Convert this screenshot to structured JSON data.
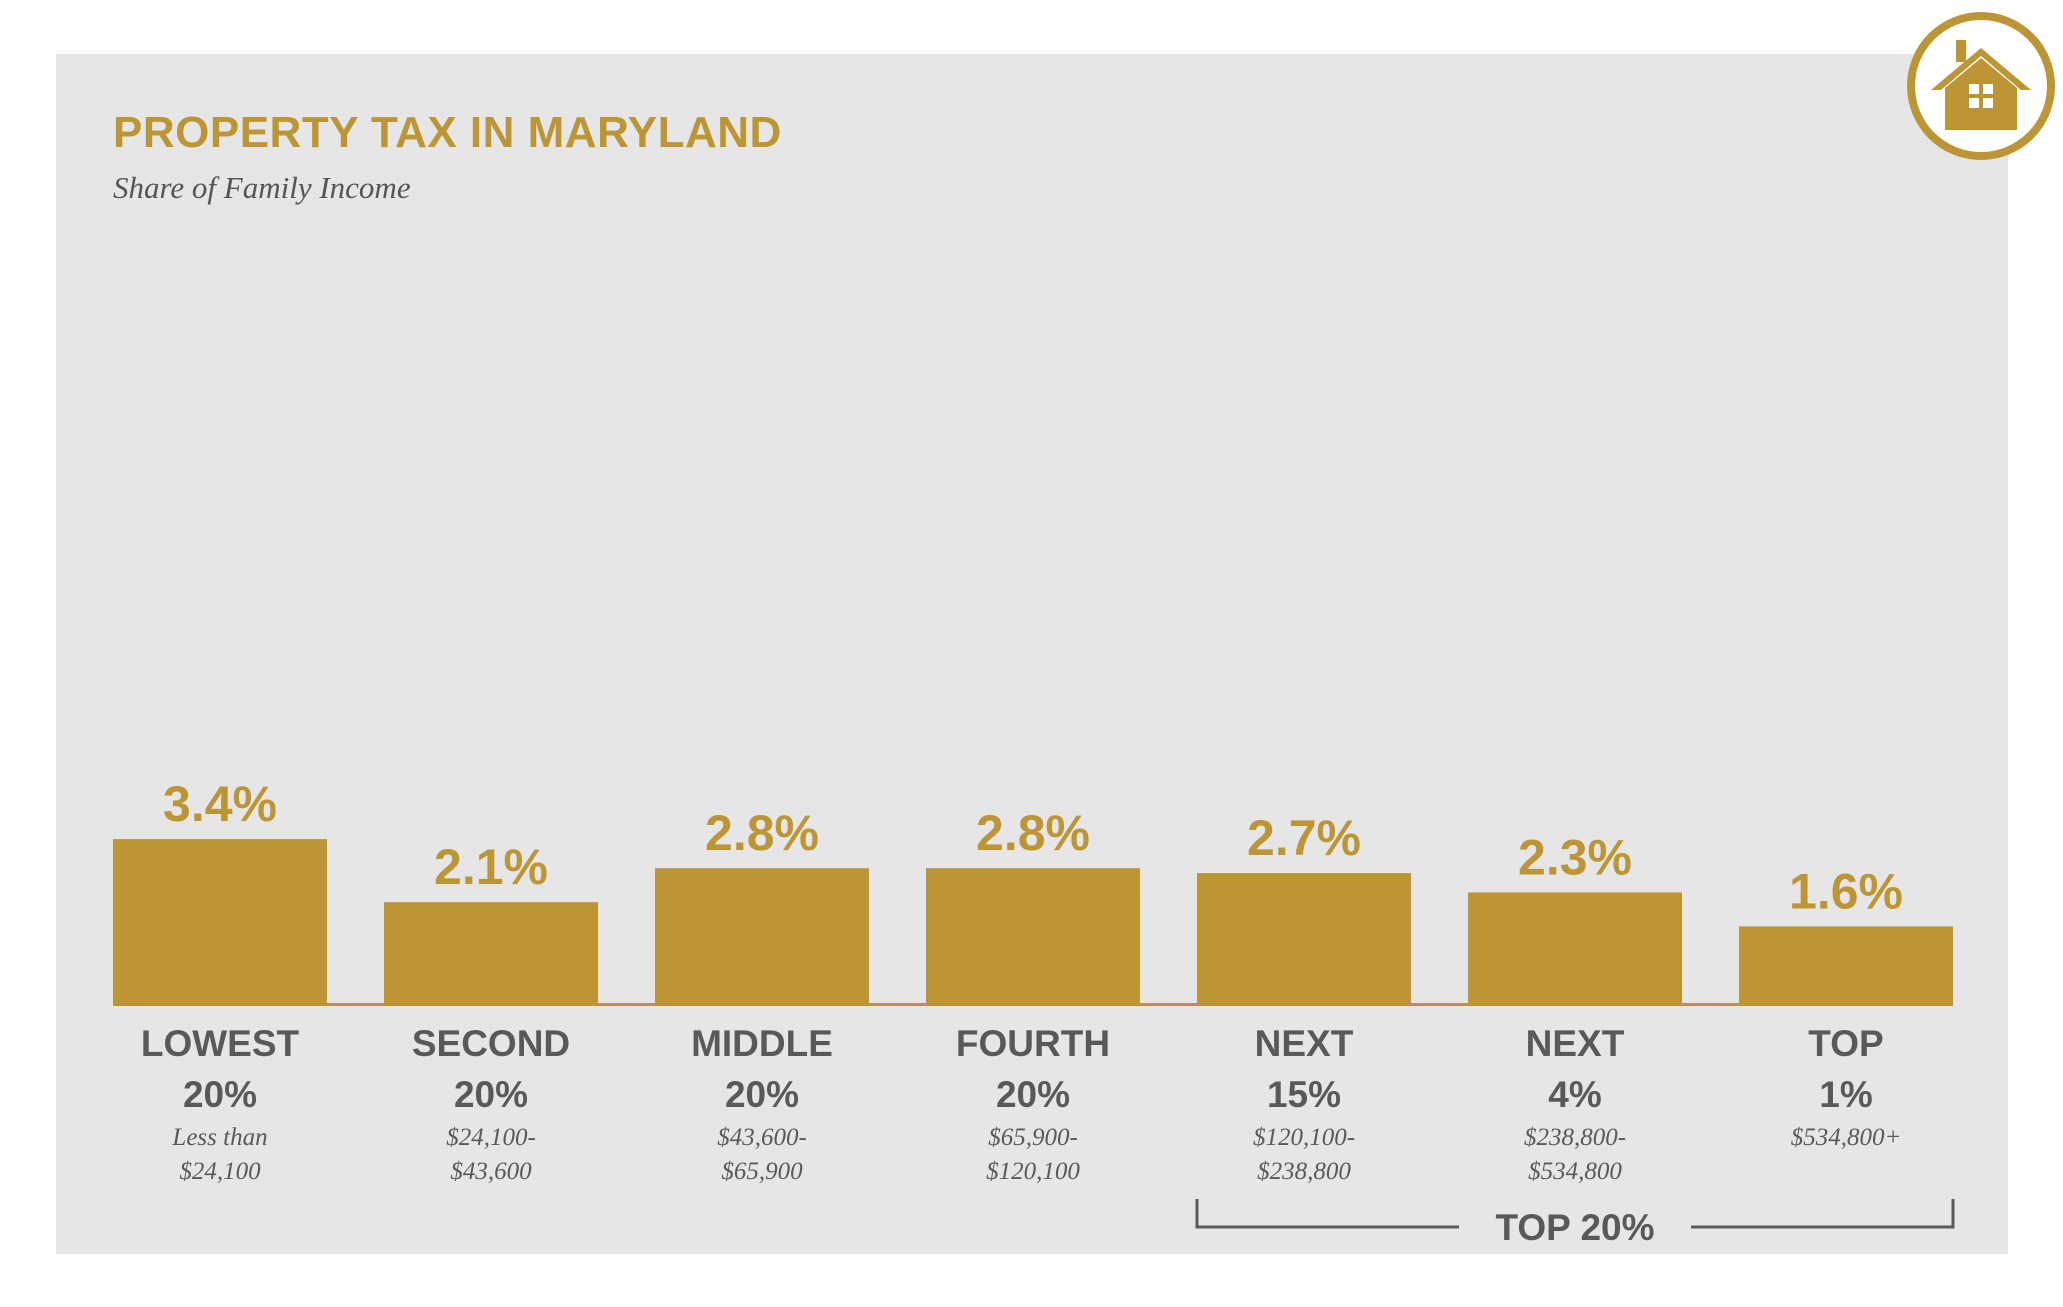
{
  "header": {
    "title": "PROPERTY TAX IN MARYLAND",
    "subtitle": "Share of Family Income"
  },
  "logo": {
    "icon": "house-icon"
  },
  "colors": {
    "bar": "#bc9534",
    "background": "#e6e6e6",
    "text": "#58595b"
  },
  "chart_data": {
    "type": "bar",
    "title": "PROPERTY TAX IN MARYLAND",
    "subtitle": "Share of Family Income",
    "categories": [
      "LOWEST 20%",
      "SECOND 20%",
      "MIDDLE 20%",
      "FOURTH 20%",
      "NEXT 15%",
      "NEXT 4%",
      "TOP 1%"
    ],
    "category_lines": [
      [
        "LOWEST",
        "20%"
      ],
      [
        "SECOND",
        "20%"
      ],
      [
        "MIDDLE",
        "20%"
      ],
      [
        "FOURTH",
        "20%"
      ],
      [
        "NEXT",
        "15%"
      ],
      [
        "NEXT",
        "4%"
      ],
      [
        "TOP",
        "1%"
      ]
    ],
    "income_ranges": [
      [
        "Less than",
        "$24,100"
      ],
      [
        "$24,100-",
        "$43,600"
      ],
      [
        "$43,600-",
        "$65,900"
      ],
      [
        "$65,900-",
        "$120,100"
      ],
      [
        "$120,100-",
        "$238,800"
      ],
      [
        "$238,800-",
        "$534,800"
      ],
      [
        "$534,800+"
      ]
    ],
    "values": [
      3.4,
      2.1,
      2.8,
      2.8,
      2.7,
      2.3,
      1.6
    ],
    "value_labels": [
      "3.4%",
      "2.1%",
      "2.8%",
      "2.8%",
      "2.7%",
      "2.3%",
      "1.6%"
    ],
    "ylim": [
      0,
      3.4
    ],
    "grid": false,
    "group_bracket": {
      "label": "TOP 20%",
      "from": "NEXT 15%",
      "to": "TOP 1%"
    }
  }
}
